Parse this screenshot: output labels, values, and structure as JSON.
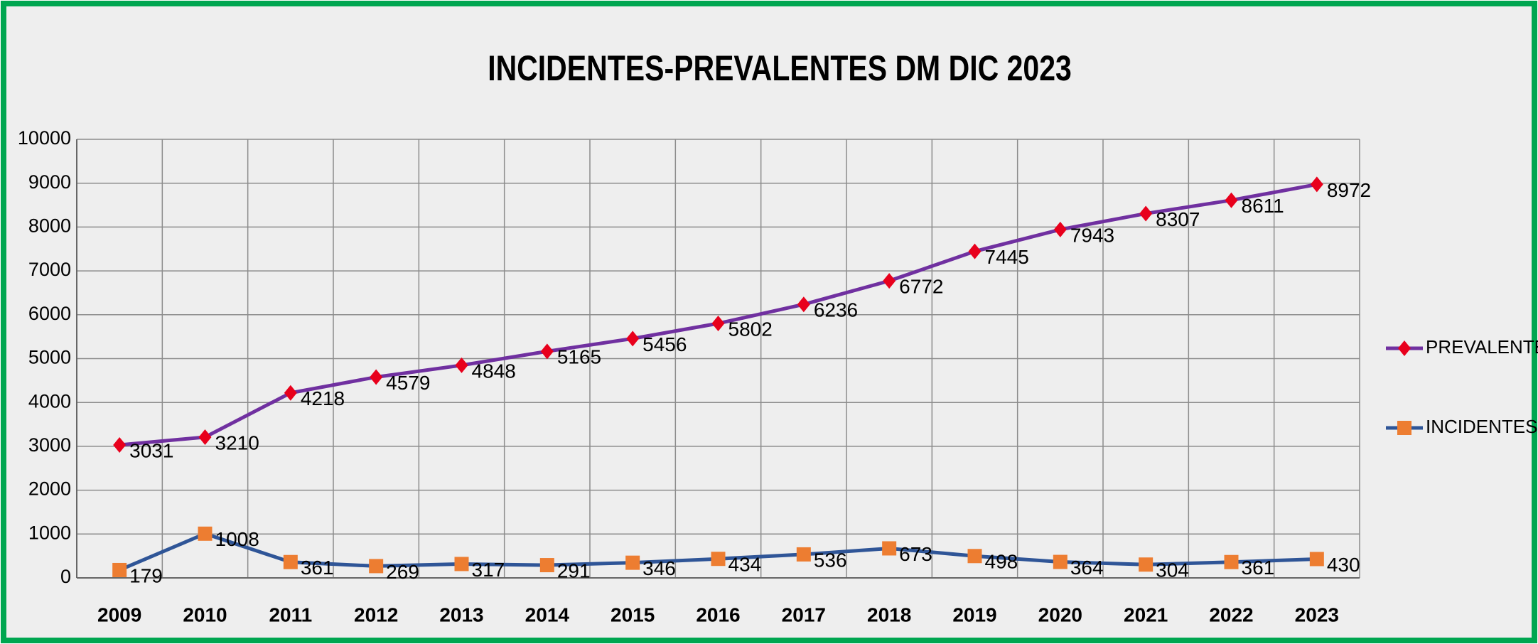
{
  "chart_data": {
    "type": "line",
    "title": "INCIDENTES-PREVALENTES  DM DIC  2023",
    "categories": [
      "2009",
      "2010",
      "2011",
      "2012",
      "2013",
      "2014",
      "2015",
      "2016",
      "2017",
      "2018",
      "2019",
      "2020",
      "2021",
      "2022",
      "2023"
    ],
    "series": [
      {
        "name": "PREVALENTES",
        "color": "#7030a0",
        "marker_color": "#e8001c",
        "marker": "diamond",
        "values": [
          3031,
          3210,
          4218,
          4579,
          4848,
          5165,
          5456,
          5802,
          6236,
          6772,
          7445,
          7943,
          8307,
          8611,
          8972
        ]
      },
      {
        "name": "INCIDENTES",
        "color": "#2f5597",
        "marker_color": "#ed7d31",
        "marker": "square",
        "values": [
          179,
          1008,
          361,
          269,
          317,
          291,
          346,
          434,
          536,
          673,
          498,
          364,
          304,
          361,
          430
        ]
      }
    ],
    "ylim": [
      0,
      10000
    ],
    "yticks": [
      0,
      1000,
      2000,
      3000,
      4000,
      5000,
      6000,
      7000,
      8000,
      9000,
      10000
    ],
    "grid": true,
    "legend": "right"
  }
}
